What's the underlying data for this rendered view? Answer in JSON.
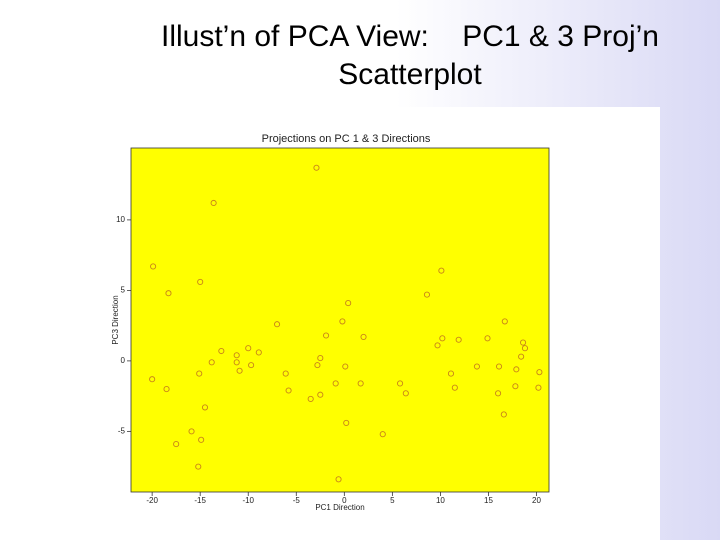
{
  "slide": {
    "title": [
      "Illust’n of PCA View:    PC1 & 3 Proj’n",
      "Scatterplot"
    ]
  },
  "chart_data": {
    "type": "scatter",
    "title": "Projections on PC 1 & 3 Directions",
    "x_label": "PC1 Direction",
    "y_label": "PC3 Direction",
    "color": "#c8841a",
    "background": "#ffff00",
    "x": [
      -2.9,
      -13.6,
      -19.9,
      -18.3,
      -15.0,
      10.1,
      8.6,
      0.4,
      -0.2,
      16.7,
      -7.0,
      -1.9,
      2.0,
      10.2,
      11.9,
      14.9,
      9.7,
      18.6,
      18.8,
      -10.0,
      -12.8,
      -8.9,
      -11.2,
      18.4,
      -2.5,
      -13.8,
      -11.2,
      -9.7,
      13.8,
      16.1,
      0.1,
      -2.8,
      -15.1,
      -10.9,
      -6.1,
      11.1,
      17.9,
      20.3,
      -20.0,
      -0.9,
      1.7,
      5.8,
      -18.5,
      -5.8,
      11.5,
      17.8,
      20.2,
      6.4,
      16.0,
      -2.5,
      -3.5,
      -14.5,
      16.6,
      0.2,
      -15.9,
      4.0,
      -14.9,
      -17.5,
      -15.2,
      -0.6
    ],
    "y": [
      13.7,
      11.2,
      6.7,
      4.8,
      5.6,
      6.4,
      4.7,
      4.1,
      2.8,
      2.8,
      2.6,
      1.8,
      1.7,
      1.6,
      1.5,
      1.6,
      1.1,
      1.3,
      0.9,
      0.9,
      0.7,
      0.6,
      0.4,
      0.3,
      0.2,
      -0.1,
      -0.1,
      -0.3,
      -0.4,
      -0.4,
      -0.4,
      -0.3,
      -0.9,
      -0.7,
      -0.9,
      -0.9,
      -0.6,
      -0.8,
      -1.3,
      -1.6,
      -1.6,
      -1.6,
      -2.0,
      -2.1,
      -1.9,
      -1.8,
      -1.9,
      -2.3,
      -2.3,
      -2.4,
      -2.7,
      -3.3,
      -3.8,
      -4.4,
      -5.0,
      -5.2,
      -5.6,
      -5.9,
      -7.5,
      -8.4
    ],
    "xlim": [
      -22.2,
      21.3
    ],
    "ylim": [
      -9.3,
      15.1
    ],
    "xticks": [
      -20,
      -15,
      -10,
      -5,
      0,
      5,
      10,
      15,
      20
    ],
    "yticks": [
      -5,
      0,
      5,
      10
    ]
  }
}
